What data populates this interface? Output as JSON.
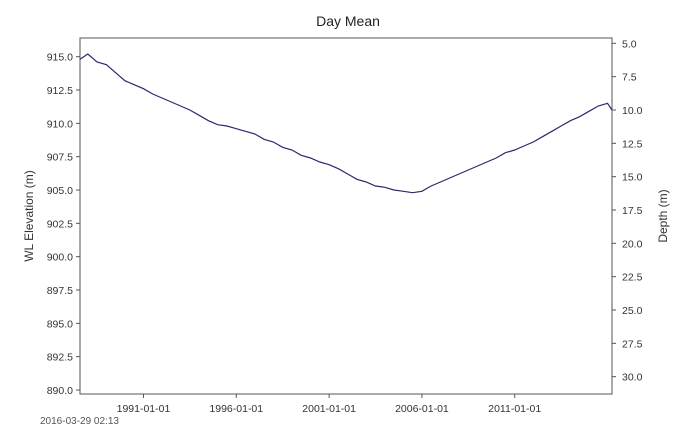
{
  "chart_data": {
    "type": "line",
    "title": "Day Mean",
    "ylabel": "WL Elevation (m)",
    "y2label": "Depth (m)",
    "xlim": [
      "1987-08-01",
      "2016-03-29"
    ],
    "ylim": [
      889.7,
      916.4
    ],
    "y2lim": [
      31.3,
      4.6
    ],
    "x_ticks": [
      "1991-01-01",
      "1996-01-01",
      "2001-01-01",
      "2006-01-01",
      "2011-01-01"
    ],
    "y_ticks": [
      "890.0",
      "892.5",
      "895.0",
      "897.5",
      "900.0",
      "902.5",
      "905.0",
      "907.5",
      "910.0",
      "912.5",
      "915.0"
    ],
    "y2_ticks": [
      "5.0",
      "7.5",
      "10.0",
      "12.5",
      "15.0",
      "17.5",
      "20.0",
      "22.5",
      "25.0",
      "27.5",
      "30.0"
    ],
    "grid": false,
    "line_color": "#2a2a6e",
    "series": [
      {
        "x": [
          "1987-08-01",
          "1988-01-01",
          "1988-07-01",
          "1989-01-01",
          "1989-07-01",
          "1990-01-01",
          "1990-07-01",
          "1991-01-01",
          "1991-07-01",
          "1992-01-01",
          "1992-07-01",
          "1993-01-01",
          "1993-07-01",
          "1994-01-01",
          "1994-07-01",
          "1995-01-01",
          "1995-07-01",
          "1996-01-01",
          "1996-07-01",
          "1997-01-01",
          "1997-07-01",
          "1998-01-01",
          "1998-07-01",
          "1999-01-01",
          "1999-07-01",
          "2000-01-01",
          "2000-07-01",
          "2001-01-01",
          "2001-07-01",
          "2002-01-01",
          "2002-07-01",
          "2003-01-01",
          "2003-07-01",
          "2004-01-01",
          "2004-07-01",
          "2005-01-01",
          "2005-07-01",
          "2006-01-01",
          "2006-07-01",
          "2007-01-01",
          "2007-07-01",
          "2008-01-01",
          "2008-07-01",
          "2009-01-01",
          "2009-07-01",
          "2010-01-01",
          "2010-07-01",
          "2011-01-01",
          "2011-07-01",
          "2012-01-01",
          "2012-07-01",
          "2013-01-01",
          "2013-07-01",
          "2014-01-01",
          "2014-07-01",
          "2015-01-01",
          "2015-07-01",
          "2016-01-01",
          "2016-03-29"
        ],
        "y": [
          914.8,
          915.2,
          914.6,
          914.4,
          913.8,
          913.2,
          912.9,
          912.6,
          912.2,
          911.9,
          911.6,
          911.3,
          911.0,
          910.6,
          910.2,
          909.9,
          909.8,
          909.6,
          909.4,
          909.2,
          908.8,
          908.6,
          908.2,
          908.0,
          907.6,
          907.4,
          907.1,
          906.9,
          906.6,
          906.2,
          905.8,
          905.6,
          905.3,
          905.2,
          905.0,
          904.9,
          904.8,
          904.9,
          905.3,
          905.6,
          905.9,
          906.2,
          906.5,
          906.8,
          907.1,
          907.4,
          907.8,
          908.0,
          908.3,
          908.6,
          909.0,
          909.4,
          909.8,
          910.2,
          910.5,
          910.9,
          911.3,
          911.5,
          911.0
        ]
      }
    ]
  },
  "footer": {
    "timestamp": "2016-03-29   02:13"
  }
}
